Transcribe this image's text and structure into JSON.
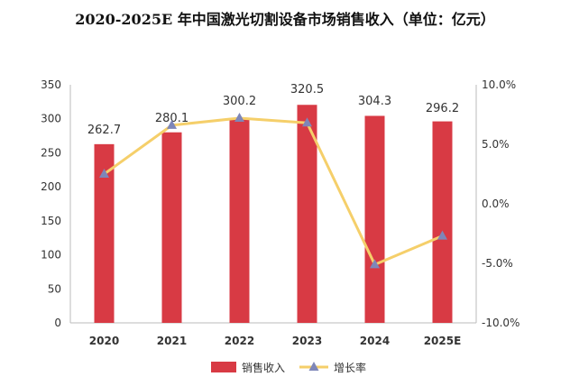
{
  "chart_data": {
    "type": "bar",
    "title": "2020-2025E 年中国激光切割设备市场销售收入（单位：亿元）",
    "categories": [
      "2020",
      "2021",
      "2022",
      "2023",
      "2024",
      "2025E"
    ],
    "series": [
      {
        "name": "销售收入",
        "type": "bar",
        "axis": "left",
        "values": [
          262.7,
          280.1,
          300.2,
          320.5,
          304.3,
          296.2
        ],
        "labels": [
          "262.7",
          "280.1",
          "300.2",
          "320.5",
          "304.3",
          "296.2"
        ]
      },
      {
        "name": "增长率",
        "type": "line",
        "axis": "right",
        "values": [
          2.5,
          6.6,
          7.2,
          6.8,
          -5.1,
          -2.7
        ]
      }
    ],
    "y_left": {
      "min": 0,
      "max": 350,
      "ticks": [
        "0",
        "50",
        "100",
        "150",
        "200",
        "250",
        "300",
        "350"
      ]
    },
    "y_right": {
      "min": -10,
      "max": 10,
      "ticks": [
        "-10.0%",
        "-5.0%",
        "0.0%",
        "5.0%",
        "10.0%"
      ]
    },
    "legend_position": "bottom",
    "grid": false,
    "colors": {
      "bar": "#d83a44",
      "line": "#f5cf6a",
      "marker": "#7e86b8"
    }
  }
}
